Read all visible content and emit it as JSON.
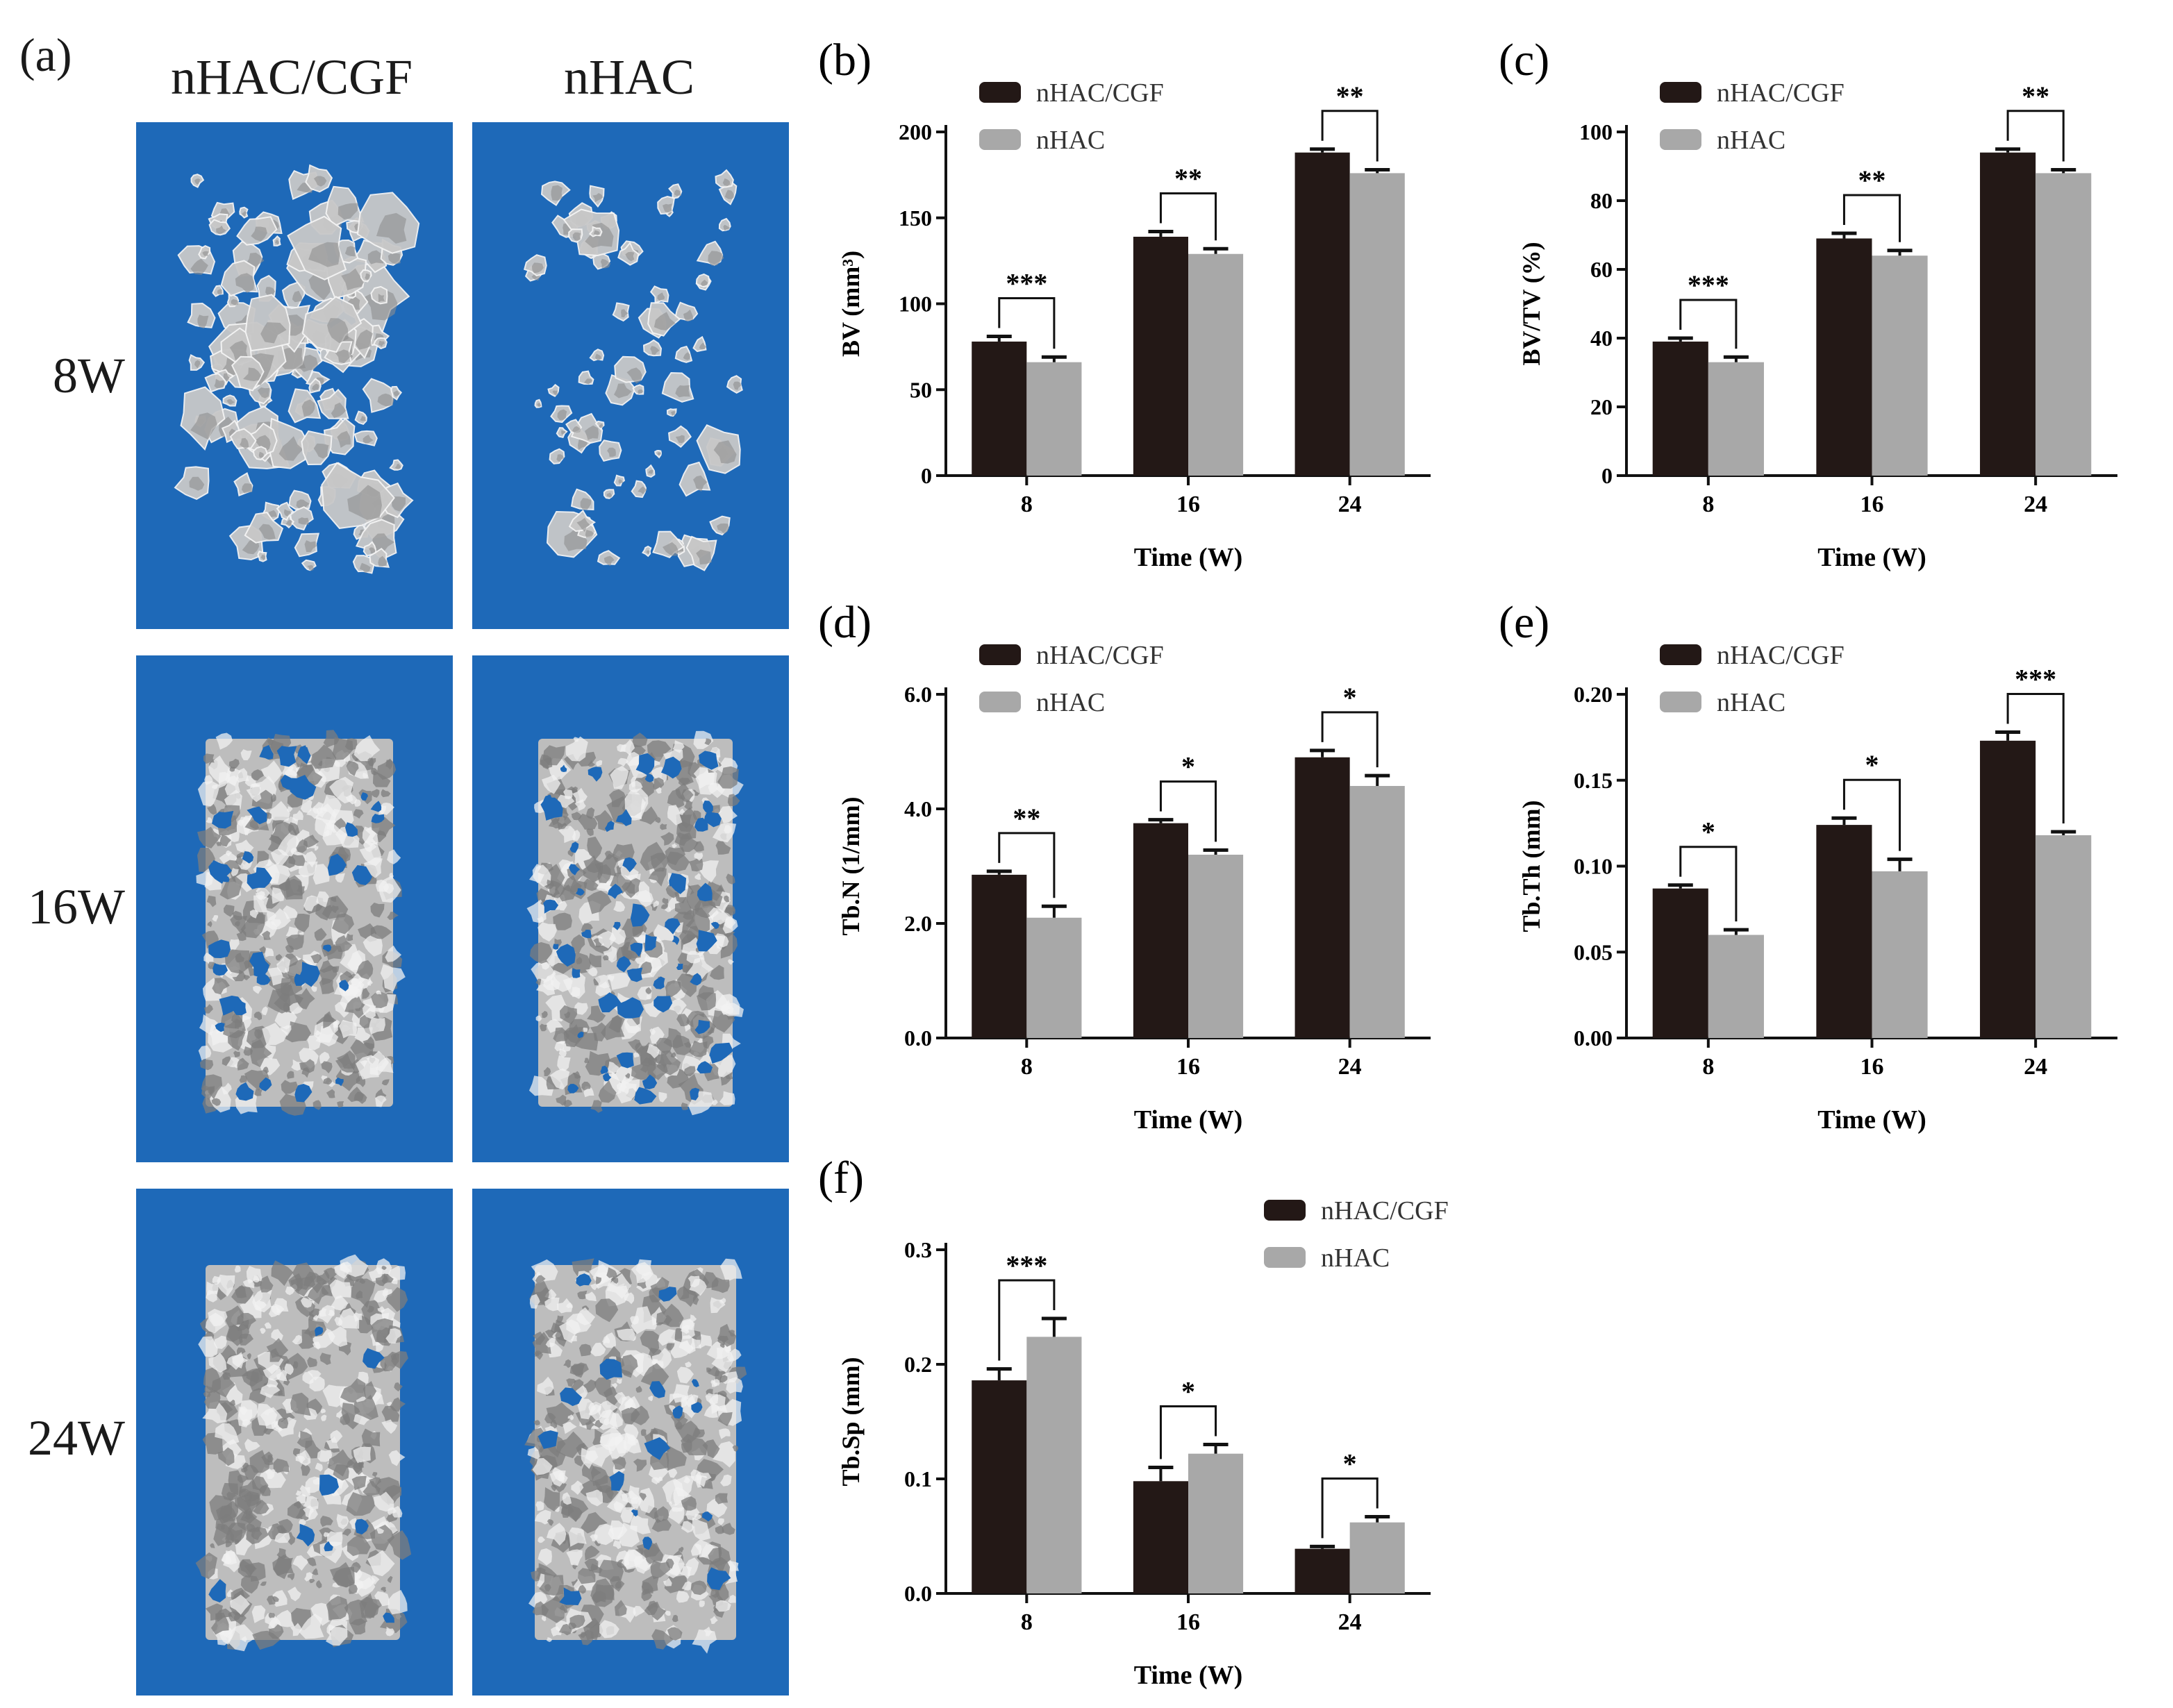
{
  "panel_a": {
    "letter": "(a)",
    "columns": [
      "nHAC/CGF",
      "nHAC"
    ],
    "rows": [
      "8W",
      "16W",
      "24W"
    ],
    "scan_background_color": "#1e69b8",
    "bone_color": "#c8c8c8"
  },
  "colors": {
    "nHAC/CGF": "#231816",
    "nHAC": "#a8a8a8"
  },
  "chart_data": [
    {
      "id": "b",
      "letter": "(b)",
      "type": "bar",
      "categories": [
        "8",
        "16",
        "24"
      ],
      "series": [
        {
          "name": "nHAC/CGF",
          "values": [
            78,
            139,
            188
          ],
          "errors": [
            3,
            3,
            2
          ]
        },
        {
          "name": "nHAC",
          "values": [
            66,
            129,
            176
          ],
          "errors": [
            3,
            3,
            2
          ]
        }
      ],
      "xlabel": "Time (W)",
      "ylabel": "BV (mm³)",
      "ylim": [
        0,
        200
      ],
      "yticks": [
        "0",
        "50",
        "100",
        "150",
        "200"
      ],
      "significance": [
        "***",
        "**",
        "**"
      ],
      "legend": "top-left"
    },
    {
      "id": "c",
      "letter": "(c)",
      "type": "bar",
      "categories": [
        "8",
        "16",
        "24"
      ],
      "series": [
        {
          "name": "nHAC/CGF",
          "values": [
            39,
            69,
            94
          ],
          "errors": [
            1,
            1.5,
            1
          ]
        },
        {
          "name": "nHAC",
          "values": [
            33,
            64,
            88
          ],
          "errors": [
            1.5,
            1.5,
            1
          ]
        }
      ],
      "xlabel": "Time (W)",
      "ylabel": "BV/TV (%)",
      "ylim": [
        0,
        100
      ],
      "yticks": [
        "0",
        "20",
        "40",
        "60",
        "80",
        "100"
      ],
      "significance": [
        "***",
        "**",
        "**"
      ],
      "legend": "top-left"
    },
    {
      "id": "d",
      "letter": "(d)",
      "type": "bar",
      "categories": [
        "8",
        "16",
        "24"
      ],
      "series": [
        {
          "name": "nHAC/CGF",
          "values": [
            2.85,
            3.75,
            4.9
          ],
          "errors": [
            0.06,
            0.06,
            0.12
          ]
        },
        {
          "name": "nHAC",
          "values": [
            2.1,
            3.2,
            4.4
          ],
          "errors": [
            0.2,
            0.08,
            0.18
          ]
        }
      ],
      "xlabel": "Time (W)",
      "ylabel": "Tb.N (1/mm)",
      "ylim": [
        0,
        6
      ],
      "yticks": [
        "0.0",
        "2.0",
        "4.0",
        "6.0"
      ],
      "significance": [
        "**",
        "*",
        "*"
      ],
      "legend": "top-left"
    },
    {
      "id": "e",
      "letter": "(e)",
      "type": "bar",
      "categories": [
        "8",
        "16",
        "24"
      ],
      "series": [
        {
          "name": "nHAC/CGF",
          "values": [
            0.087,
            0.124,
            0.173
          ],
          "errors": [
            0.002,
            0.004,
            0.005
          ]
        },
        {
          "name": "nHAC",
          "values": [
            0.06,
            0.097,
            0.118
          ],
          "errors": [
            0.003,
            0.007,
            0.002
          ]
        }
      ],
      "xlabel": "Time (W)",
      "ylabel": "Tb.Th (mm)",
      "ylim": [
        0,
        0.2
      ],
      "yticks": [
        "0.00",
        "0.05",
        "0.10",
        "0.15",
        "0.20"
      ],
      "significance": [
        "*",
        "*",
        "***"
      ],
      "legend": "top-left"
    },
    {
      "id": "f",
      "letter": "(f)",
      "type": "bar",
      "categories": [
        "8",
        "16",
        "24"
      ],
      "series": [
        {
          "name": "nHAC/CGF",
          "values": [
            0.186,
            0.098,
            0.039
          ],
          "errors": [
            0.01,
            0.012,
            0.002
          ]
        },
        {
          "name": "nHAC",
          "values": [
            0.224,
            0.122,
            0.062
          ],
          "errors": [
            0.016,
            0.008,
            0.005
          ]
        }
      ],
      "xlabel": "Time (W)",
      "ylabel": "Tb.Sp (mm)",
      "ylim": [
        0,
        0.3
      ],
      "yticks": [
        "0.0",
        "0.1",
        "0.2",
        "0.3"
      ],
      "significance": [
        "***",
        "*",
        "*"
      ],
      "legend": "top-right"
    }
  ]
}
